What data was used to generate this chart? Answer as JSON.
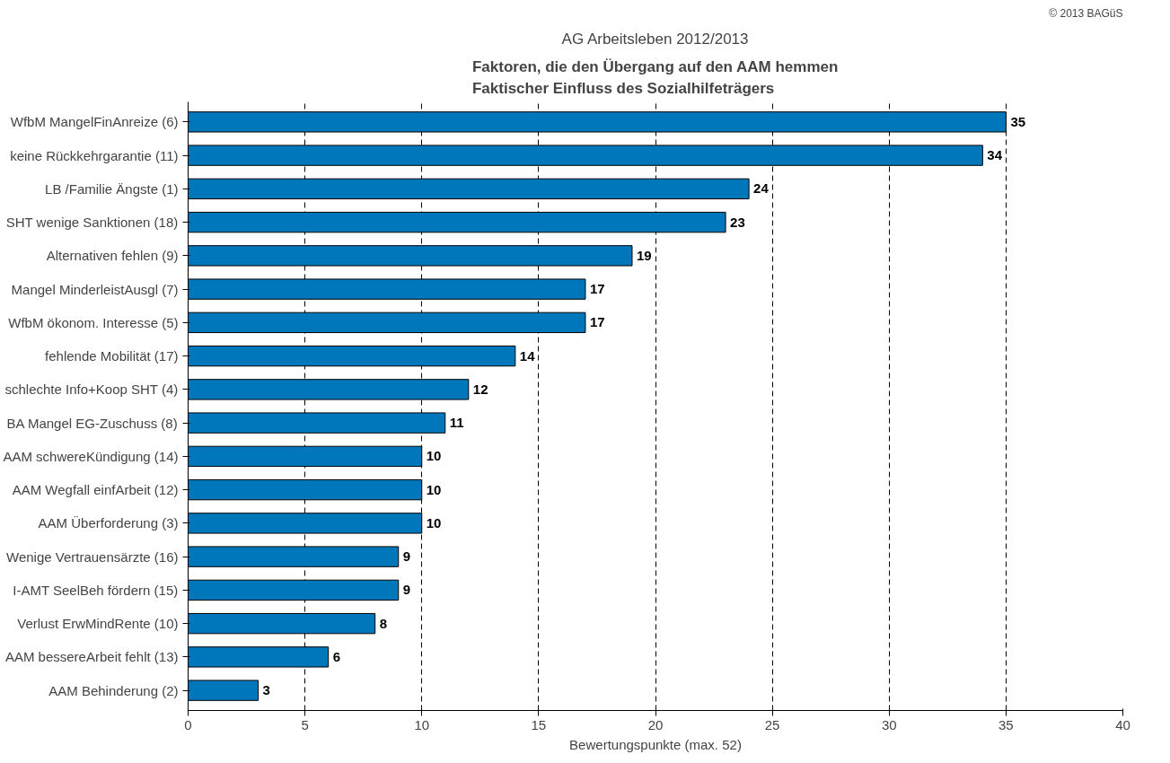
{
  "chart_data": {
    "type": "bar",
    "orientation": "horizontal",
    "title": "AG Arbeitsleben 2012/2013",
    "subtitle": "Faktoren, die den Übergang auf den AAM hemmen\nFaktischer Einfluss des Sozialhilfeträgers",
    "xlabel": "Bewertungspunkte (max. 52)",
    "annotations": [
      "© 2013 BAGüS"
    ],
    "categories": [
      "WfbM MangelFinAnreize (6)",
      "keine Rückkehrgarantie (11)",
      "LB /Familie Ängste (1)",
      "SHT wenige Sanktionen (18)",
      "Alternativen fehlen (9)",
      "Mangel MinderleistAusgl (7)",
      "WfbM ökonom. Interesse (5)",
      "fehlende Mobilität (17)",
      "schlechte Info+Koop SHT (4)",
      "BA Mangel EG-Zuschuss (8)",
      "AAM schwereKündigung (14)",
      "AAM Wegfall einfArbeit (12)",
      "AAM Überforderung (3)",
      "Wenige Vertrauensärzte (16)",
      "I-AMT SeelBeh fördern (15)",
      "Verlust ErwMindRente (10)",
      "AAM bessereArbeit fehlt (13)",
      "AAM Behinderung (2)"
    ],
    "values": [
      35,
      34,
      24,
      23,
      19,
      17,
      17,
      14,
      12,
      11,
      10,
      10,
      10,
      9,
      9,
      8,
      6,
      3
    ],
    "color": "#0077bb",
    "xlim": [
      0,
      40
    ],
    "xticks": [
      0,
      5,
      10,
      15,
      20,
      25,
      30,
      35,
      40
    ],
    "grid": "x",
    "data_labels": true
  }
}
